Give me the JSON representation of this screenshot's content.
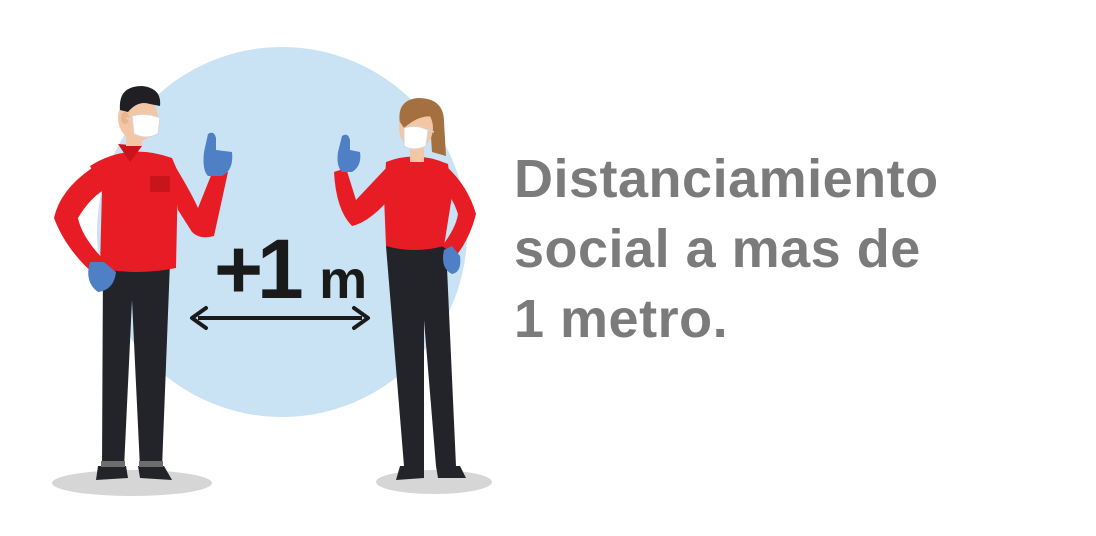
{
  "illustration": {
    "distance_prefix": "+1",
    "distance_unit": "m",
    "icons": [
      "man-with-mask-icon",
      "woman-with-mask-icon",
      "double-arrow-icon"
    ]
  },
  "headline": {
    "lines": [
      "Distanciamiento",
      "social a mas de",
      "1 metro."
    ]
  },
  "colors": {
    "circle": "#c9e2f4",
    "shirt": "#e81c24",
    "pants": "#23232a",
    "gloves": "#4f7fc4",
    "text": "#7b7b7b"
  }
}
